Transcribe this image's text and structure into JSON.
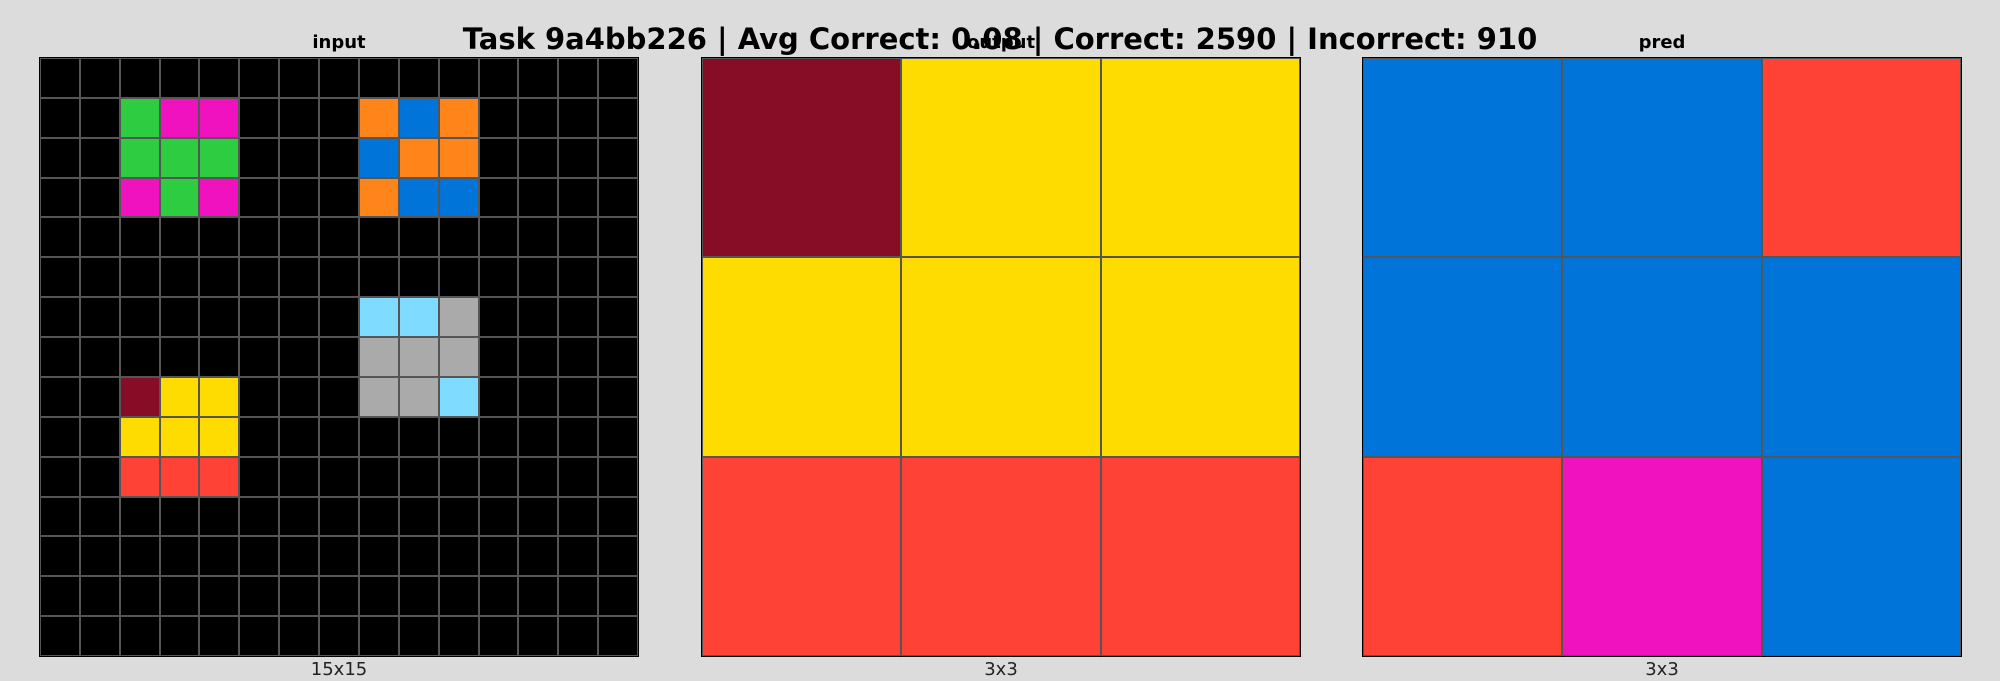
{
  "title": "Task 9a4bb226 | Avg Correct: 0.08 | Correct: 2590 | Incorrect: 910",
  "palette": {
    "0": "#000000",
    "1": "#0074D9",
    "2": "#FF4136",
    "3": "#2ECC40",
    "4": "#FFDC00",
    "5": "#AAAAAA",
    "6": "#F012BE",
    "7": "#FF851B",
    "8": "#7FDBFF",
    "9": "#870C25"
  },
  "panels": [
    {
      "id": "input",
      "title": "input",
      "caption": "15x15",
      "grid": [
        [
          0,
          0,
          0,
          0,
          0,
          0,
          0,
          0,
          0,
          0,
          0,
          0,
          0,
          0,
          0
        ],
        [
          0,
          0,
          3,
          6,
          6,
          0,
          0,
          0,
          7,
          1,
          7,
          0,
          0,
          0,
          0
        ],
        [
          0,
          0,
          3,
          3,
          3,
          0,
          0,
          0,
          1,
          7,
          7,
          0,
          0,
          0,
          0
        ],
        [
          0,
          0,
          6,
          3,
          6,
          0,
          0,
          0,
          7,
          1,
          1,
          0,
          0,
          0,
          0
        ],
        [
          0,
          0,
          0,
          0,
          0,
          0,
          0,
          0,
          0,
          0,
          0,
          0,
          0,
          0,
          0
        ],
        [
          0,
          0,
          0,
          0,
          0,
          0,
          0,
          0,
          0,
          0,
          0,
          0,
          0,
          0,
          0
        ],
        [
          0,
          0,
          0,
          0,
          0,
          0,
          0,
          0,
          8,
          8,
          5,
          0,
          0,
          0,
          0
        ],
        [
          0,
          0,
          0,
          0,
          0,
          0,
          0,
          0,
          5,
          5,
          5,
          0,
          0,
          0,
          0
        ],
        [
          0,
          0,
          9,
          4,
          4,
          0,
          0,
          0,
          5,
          5,
          8,
          0,
          0,
          0,
          0
        ],
        [
          0,
          0,
          4,
          4,
          4,
          0,
          0,
          0,
          0,
          0,
          0,
          0,
          0,
          0,
          0
        ],
        [
          0,
          0,
          2,
          2,
          2,
          0,
          0,
          0,
          0,
          0,
          0,
          0,
          0,
          0,
          0
        ],
        [
          0,
          0,
          0,
          0,
          0,
          0,
          0,
          0,
          0,
          0,
          0,
          0,
          0,
          0,
          0
        ],
        [
          0,
          0,
          0,
          0,
          0,
          0,
          0,
          0,
          0,
          0,
          0,
          0,
          0,
          0,
          0
        ],
        [
          0,
          0,
          0,
          0,
          0,
          0,
          0,
          0,
          0,
          0,
          0,
          0,
          0,
          0,
          0
        ],
        [
          0,
          0,
          0,
          0,
          0,
          0,
          0,
          0,
          0,
          0,
          0,
          0,
          0,
          0,
          0
        ]
      ]
    },
    {
      "id": "output",
      "title": "output",
      "caption": "3x3",
      "grid": [
        [
          9,
          4,
          4
        ],
        [
          4,
          4,
          4
        ],
        [
          2,
          2,
          2
        ]
      ]
    },
    {
      "id": "pred",
      "title": "pred",
      "caption": "3x3",
      "grid": [
        [
          1,
          1,
          2
        ],
        [
          1,
          1,
          1
        ],
        [
          2,
          6,
          1
        ]
      ]
    }
  ]
}
